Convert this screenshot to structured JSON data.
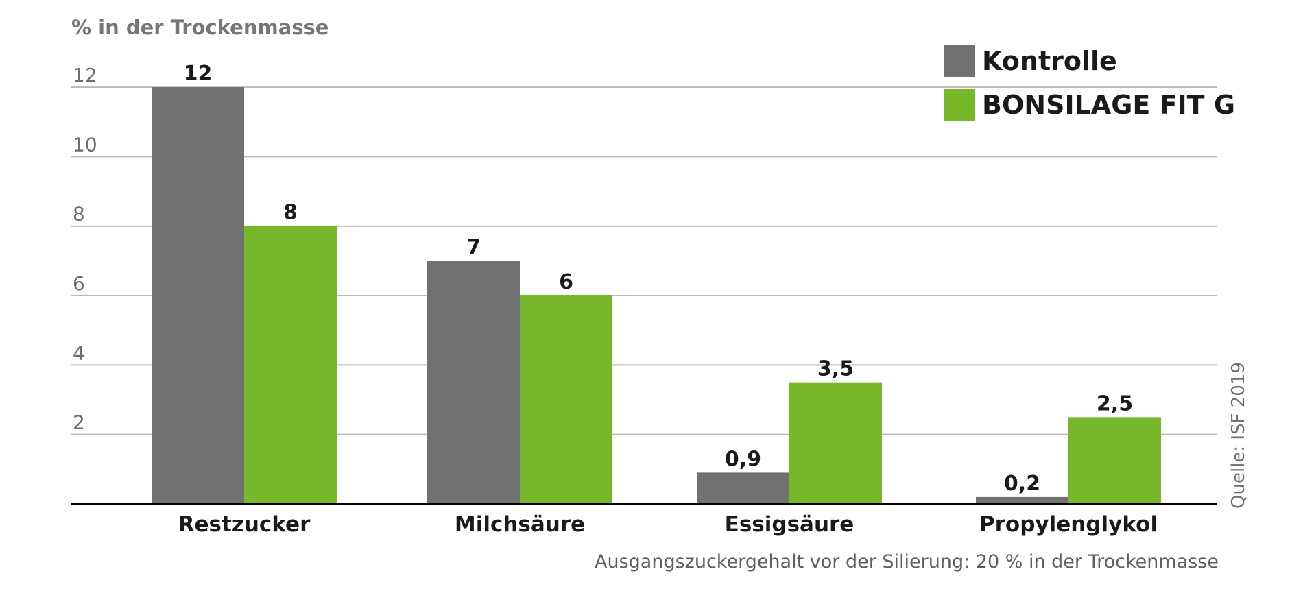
{
  "chart_data": {
    "type": "bar",
    "ylabel": "% in der Trockenmasse",
    "categories": [
      "Restzucker",
      "Milchsäure",
      "Essigsäure",
      "Propylenglykol"
    ],
    "series": [
      {
        "name": "Kontrolle",
        "values": [
          12,
          7,
          0.9,
          0.2
        ],
        "labels": [
          "12",
          "7",
          "0,9",
          "0,2"
        ],
        "color": "#717171"
      },
      {
        "name": "BONSILAGE FIT G",
        "values": [
          8,
          6,
          3.5,
          2.5
        ],
        "labels": [
          "8",
          "6",
          "3,5",
          "2,5"
        ],
        "color": "#76b82a"
      }
    ],
    "yticks": [
      "2",
      "4",
      "6",
      "8",
      "10",
      "12"
    ],
    "ylim": [
      0,
      12.1
    ],
    "grid": true,
    "legend_position": "top-right",
    "footnote": "Ausgangszuckergehalt vor der Silierung: 20 % in der Trockenmasse",
    "source": "Quelle: ISF 2019"
  }
}
